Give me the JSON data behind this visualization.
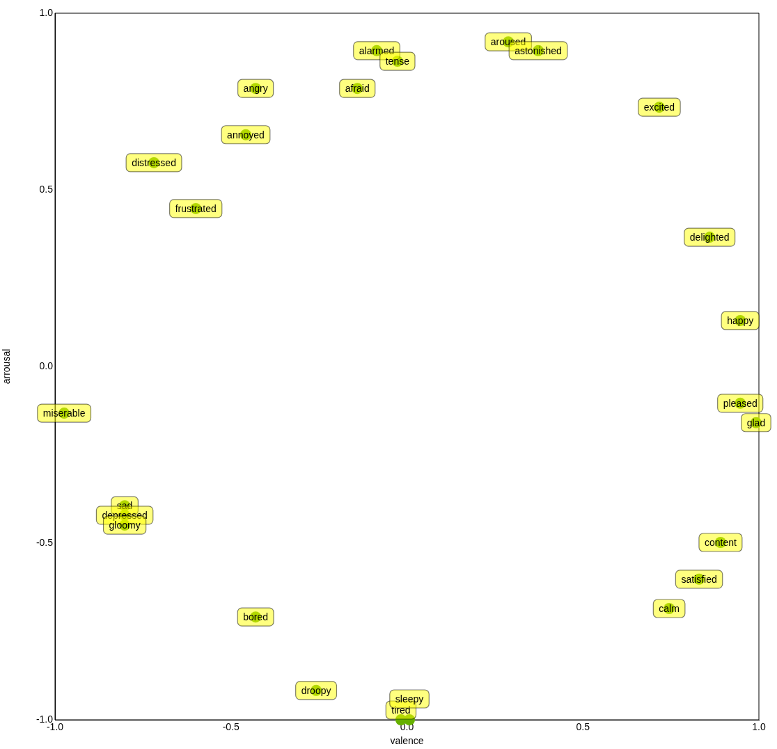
{
  "chart_data": {
    "type": "scatter",
    "xlabel": "valence",
    "ylabel": "arrousal",
    "xlim": [
      -1,
      1
    ],
    "ylim": [
      -1,
      1
    ],
    "xticks": [
      {
        "value": -1,
        "label": "-1.0"
      },
      {
        "value": -0.5,
        "label": "-0.5"
      },
      {
        "value": 0,
        "label": "0.0"
      },
      {
        "value": 0.5,
        "label": "0.5"
      },
      {
        "value": 1,
        "label": "1.0"
      }
    ],
    "yticks": [
      {
        "value": -1,
        "label": "-1.0"
      },
      {
        "value": -0.5,
        "label": "-0.5"
      },
      {
        "value": 0,
        "label": "0.0"
      },
      {
        "value": 0.5,
        "label": "0.5"
      },
      {
        "value": 1,
        "label": "1.0"
      }
    ],
    "grid": false,
    "legend": false,
    "marker": "circle",
    "series": [
      {
        "color": "#66b000",
        "x": [
          -0.086,
          -0.027,
          0.288,
          0.373,
          -0.43,
          -0.141,
          0.717,
          -0.458,
          -0.719,
          -0.6,
          0.86,
          0.947,
          -0.974,
          0.947,
          0.992,
          -0.802,
          -0.802,
          -0.802,
          0.891,
          0.83,
          0.745,
          -0.43,
          -0.258,
          -0.017,
          0.007
        ],
        "values": [
          0.894,
          0.864,
          0.919,
          0.894,
          0.787,
          0.787,
          0.734,
          0.656,
          0.577,
          0.447,
          0.366,
          0.13,
          -0.132,
          -0.104,
          -0.159,
          -0.394,
          -0.421,
          -0.449,
          -0.498,
          -0.602,
          -0.685,
          -0.709,
          -0.917,
          -1.0,
          -1.0
        ]
      }
    ],
    "annotations": [
      {
        "text": "alarmed",
        "x": -0.086,
        "y": 0.894
      },
      {
        "text": "tense",
        "x": -0.027,
        "y": 0.864
      },
      {
        "text": "aroused",
        "x": 0.288,
        "y": 0.919
      },
      {
        "text": "astonished",
        "x": 0.373,
        "y": 0.894
      },
      {
        "text": "angry",
        "x": -0.43,
        "y": 0.787
      },
      {
        "text": "afraid",
        "x": -0.141,
        "y": 0.787
      },
      {
        "text": "excited",
        "x": 0.717,
        "y": 0.734
      },
      {
        "text": "annoyed",
        "x": -0.458,
        "y": 0.656
      },
      {
        "text": "distressed",
        "x": -0.719,
        "y": 0.577
      },
      {
        "text": "frustrated",
        "x": -0.6,
        "y": 0.447
      },
      {
        "text": "delighted",
        "x": 0.86,
        "y": 0.366
      },
      {
        "text": "happy",
        "x": 0.947,
        "y": 0.13
      },
      {
        "text": "miserable",
        "x": -0.974,
        "y": -0.132
      },
      {
        "text": "pleased",
        "x": 0.947,
        "y": -0.104
      },
      {
        "text": "glad",
        "x": 0.992,
        "y": -0.159
      },
      {
        "text": "sad",
        "x": -0.802,
        "y": -0.394
      },
      {
        "text": "depressed",
        "x": -0.802,
        "y": -0.421
      },
      {
        "text": "gloomy",
        "x": -0.802,
        "y": -0.449
      },
      {
        "text": "content",
        "x": 0.891,
        "y": -0.498
      },
      {
        "text": "satisfied",
        "x": 0.83,
        "y": -0.602
      },
      {
        "text": "calm",
        "x": 0.745,
        "y": -0.685
      },
      {
        "text": "bored",
        "x": -0.43,
        "y": -0.709
      },
      {
        "text": "droopy",
        "x": -0.258,
        "y": -0.917
      },
      {
        "text": "tired",
        "x": -0.017,
        "y": -1.0
      },
      {
        "text": "sleepy",
        "x": 0.007,
        "y": -1.0
      }
    ]
  }
}
